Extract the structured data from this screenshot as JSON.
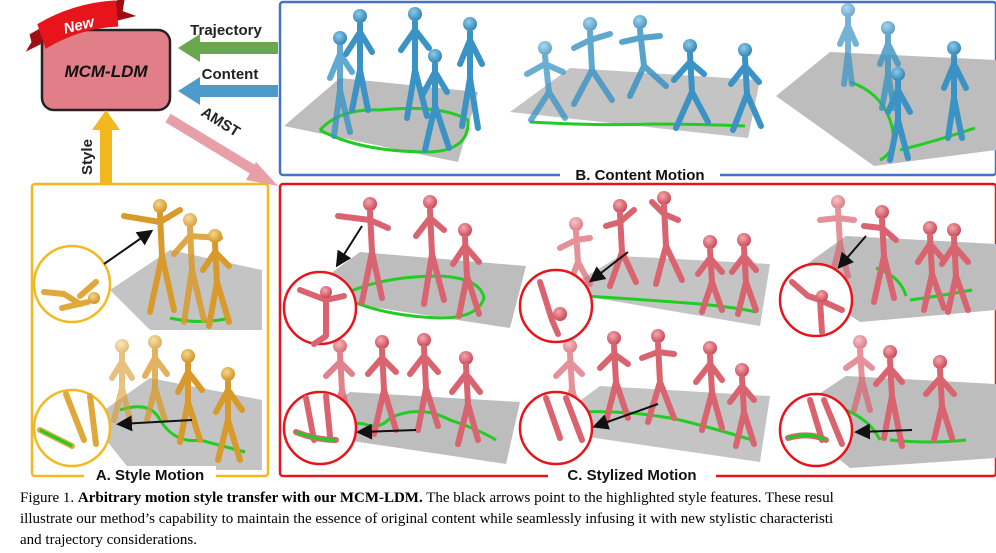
{
  "diagram": {
    "badge_new": "New",
    "model_name": "MCM-LDM",
    "arrow_trajectory": "Trajectory",
    "arrow_content": "Content",
    "arrow_amst": "AMST",
    "arrow_style": "Style",
    "panel_b_title": "B. Content Motion",
    "panel_a_title": "A. Style Motion",
    "panel_c_title": "C. Stylized Motion",
    "colors": {
      "model_box": "#e07f88",
      "badge": "#e8141c",
      "trajectory_arrow": "#6aa84f",
      "content_arrow": "#4e9ac8",
      "amst_arrow": "#e8a0a8",
      "style_arrow": "#f2b81e",
      "panel_b_border": "#4472c4",
      "panel_a_border": "#f2b81e",
      "panel_c_border": "#e8141c",
      "content_figures": "#3a93c4",
      "style_figures": "#e0a83a",
      "stylized_figures": "#d9636f",
      "trajectory_line": "#22cc22"
    }
  },
  "caption": {
    "label": "Figure 1.",
    "bold_title": "Arbitrary motion style transfer with our MCM-LDM.",
    "line1_rest": "The black arrows point to the highlighted style features. These resul",
    "line2": "illustrate our method’s capability to maintain the essence of original content while seamlessly infusing it with new stylistic characteristi",
    "line3": "and trajectory considerations."
  }
}
